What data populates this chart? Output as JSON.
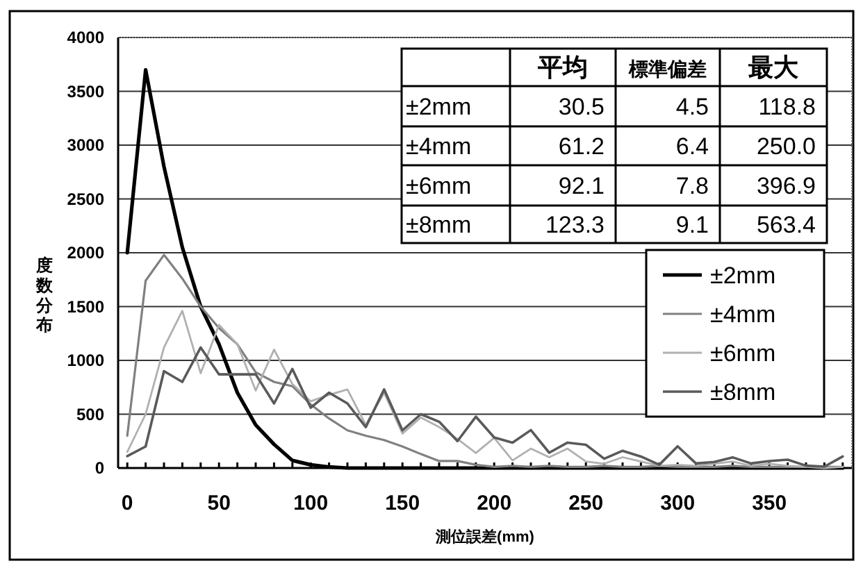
{
  "chart_data": {
    "type": "line",
    "xlabel": "測位誤差(mm)",
    "ylabel": "度数分布",
    "annotations": [
      "平均",
      "標準偏差",
      "最大",
      "±2mm",
      "30.5",
      "4.5",
      "118.8",
      "±4mm",
      "61.2",
      "6.4",
      "250.0",
      "±6mm",
      "92.1",
      "7.8",
      "396.9",
      "±8mm",
      "123.3",
      "9.1",
      "563.4"
    ],
    "x": [
      0,
      10,
      20,
      30,
      40,
      50,
      60,
      70,
      80,
      90,
      100,
      110,
      120,
      130,
      140,
      150,
      160,
      170,
      180,
      190,
      200,
      210,
      220,
      230,
      240,
      250,
      260,
      270,
      280,
      290,
      300,
      310,
      320,
      330,
      340,
      350,
      360,
      370,
      380,
      390
    ],
    "xlim": [
      -5,
      395
    ],
    "xticks": [
      0,
      {
        "value": 10,
        "label": null
      },
      {
        "value": 20,
        "label": null
      },
      {
        "value": 30,
        "label": null
      },
      {
        "value": 40,
        "label": null
      },
      50,
      {
        "value": 60,
        "label": null
      },
      {
        "value": 70,
        "label": null
      },
      {
        "value": 80,
        "label": null
      },
      {
        "value": 90,
        "label": null
      },
      100,
      {
        "value": 110,
        "label": null
      },
      {
        "value": 120,
        "label": null
      },
      {
        "value": 130,
        "label": null
      },
      {
        "value": 140,
        "label": null
      },
      150,
      {
        "value": 160,
        "label": null
      },
      {
        "value": 170,
        "label": null
      },
      {
        "value": 180,
        "label": null
      },
      {
        "value": 190,
        "label": null
      },
      200,
      {
        "value": 210,
        "label": null
      },
      {
        "value": 220,
        "label": null
      },
      {
        "value": 230,
        "label": null
      },
      {
        "value": 240,
        "label": null
      },
      250,
      {
        "value": 260,
        "label": null
      },
      {
        "value": 270,
        "label": null
      },
      {
        "value": 280,
        "label": null
      },
      {
        "value": 290,
        "label": null
      },
      300,
      {
        "value": 310,
        "label": null
      },
      {
        "value": 320,
        "label": null
      },
      {
        "value": 330,
        "label": null
      },
      {
        "value": 340,
        "label": null
      },
      350,
      {
        "value": 360,
        "label": null
      },
      {
        "value": 370,
        "label": null
      },
      {
        "value": 380,
        "label": null
      },
      {
        "value": 390,
        "label": null
      }
    ],
    "ylim": [
      0,
      4000
    ],
    "yticks": [
      0,
      500,
      1000,
      1500,
      2000,
      2500,
      3000,
      3500,
      4000
    ],
    "grid": "y",
    "legend": "right",
    "series": [
      {
        "name": "±2mm",
        "color": "#000000",
        "values": [
          2000,
          3700,
          2800,
          2050,
          1500,
          1150,
          700,
          400,
          220,
          70,
          30,
          10,
          0,
          0,
          0,
          0,
          0,
          0,
          0,
          0,
          0,
          0,
          0,
          0,
          0,
          0,
          0,
          0,
          0,
          0,
          0,
          0,
          0,
          0,
          0,
          0,
          0,
          0,
          0,
          0
        ]
      },
      {
        "name": "±4mm",
        "color": "#808080",
        "values": [
          300,
          1740,
          1980,
          1760,
          1500,
          1300,
          1150,
          890,
          800,
          760,
          590,
          460,
          350,
          300,
          260,
          200,
          130,
          65,
          65,
          30,
          10,
          20,
          10,
          20,
          10,
          10,
          20,
          10,
          10,
          20,
          10,
          10,
          10,
          20,
          10,
          10,
          10,
          10,
          10,
          10
        ]
      },
      {
        "name": "±6mm",
        "color": "#b0b0b0",
        "values": [
          150,
          500,
          1120,
          1460,
          880,
          1330,
          1150,
          720,
          1100,
          780,
          620,
          680,
          730,
          400,
          700,
          320,
          470,
          380,
          270,
          140,
          280,
          70,
          180,
          100,
          180,
          60,
          40,
          100,
          60,
          20,
          30,
          20,
          40,
          60,
          20,
          40,
          20,
          10,
          0,
          10
        ]
      },
      {
        "name": "±8mm",
        "color": "#5a5a5a",
        "values": [
          110,
          200,
          900,
          800,
          1120,
          870,
          870,
          870,
          600,
          920,
          560,
          700,
          600,
          380,
          730,
          350,
          500,
          430,
          250,
          477,
          284,
          236,
          352,
          142,
          236,
          216,
          86,
          160,
          107,
          30,
          202,
          43,
          56,
          99,
          43,
          64,
          77,
          22,
          13,
          107
        ]
      }
    ]
  }
}
